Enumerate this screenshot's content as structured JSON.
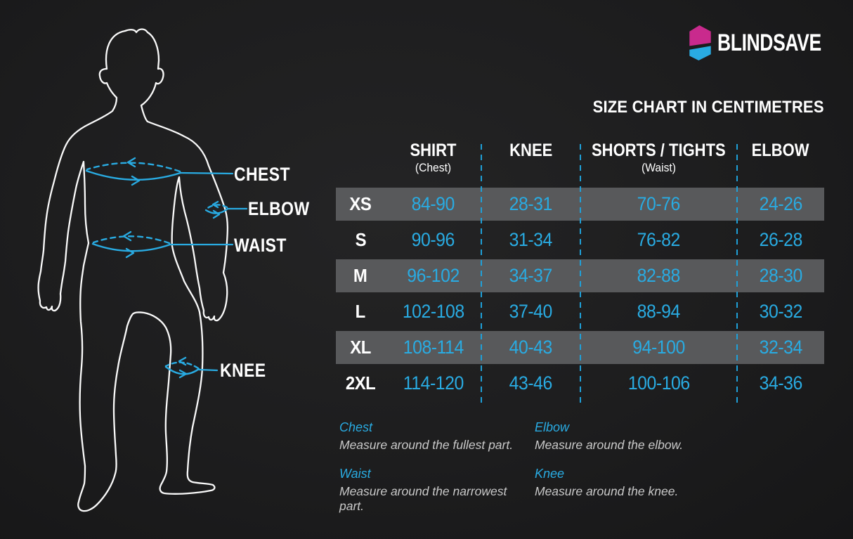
{
  "brand": {
    "name": "BLINDSAVE",
    "logo_mark": "hexagon-split",
    "logo_colors": {
      "top": "#c92a8d",
      "bottom": "#29abe2"
    }
  },
  "title": "SIZE CHART IN CENTIMETRES",
  "figure": {
    "description": "body-outline-with-measurement-rings",
    "labels": [
      {
        "id": "chest",
        "label": "CHEST"
      },
      {
        "id": "elbow",
        "label": "ELBOW"
      },
      {
        "id": "waist",
        "label": "WAIST"
      },
      {
        "id": "knee",
        "label": "KNEE"
      }
    ]
  },
  "size_table": {
    "columns": [
      {
        "label": "SHIRT",
        "sublabel": "(Chest)"
      },
      {
        "label": "KNEE",
        "sublabel": ""
      },
      {
        "label": "SHORTS / TIGHTS",
        "sublabel": "(Waist)"
      },
      {
        "label": "ELBOW",
        "sublabel": ""
      }
    ],
    "rows": [
      {
        "size": "XS",
        "shirt": "84-90",
        "knee": "28-31",
        "shorts_tights": "70-76",
        "elbow": "24-26",
        "highlighted": true
      },
      {
        "size": "S",
        "shirt": "90-96",
        "knee": "31-34",
        "shorts_tights": "76-82",
        "elbow": "26-28",
        "highlighted": false
      },
      {
        "size": "M",
        "shirt": "96-102",
        "knee": "34-37",
        "shorts_tights": "82-88",
        "elbow": "28-30",
        "highlighted": true
      },
      {
        "size": "L",
        "shirt": "102-108",
        "knee": "37-40",
        "shorts_tights": "88-94",
        "elbow": "30-32",
        "highlighted": false
      },
      {
        "size": "XL",
        "shirt": "108-114",
        "knee": "40-43",
        "shorts_tights": "94-100",
        "elbow": "32-34",
        "highlighted": true
      },
      {
        "size": "2XL",
        "shirt": "114-120",
        "knee": "43-46",
        "shorts_tights": "100-106",
        "elbow": "34-36",
        "highlighted": false
      }
    ]
  },
  "measurement_notes": [
    {
      "label": "Chest",
      "text": "Measure around the fullest part."
    },
    {
      "label": "Elbow",
      "text": "Measure around the elbow."
    },
    {
      "label": "Waist",
      "text": "Measure around the narrowest part."
    },
    {
      "label": "Knee",
      "text": "Measure around the knee."
    }
  ],
  "colors": {
    "background": "#1d1d1e",
    "accent_cyan": "#29abe2",
    "accent_magenta": "#c92a8d",
    "row_band_gray": "#58595b",
    "note_text_gray": "#c9c9c9"
  }
}
